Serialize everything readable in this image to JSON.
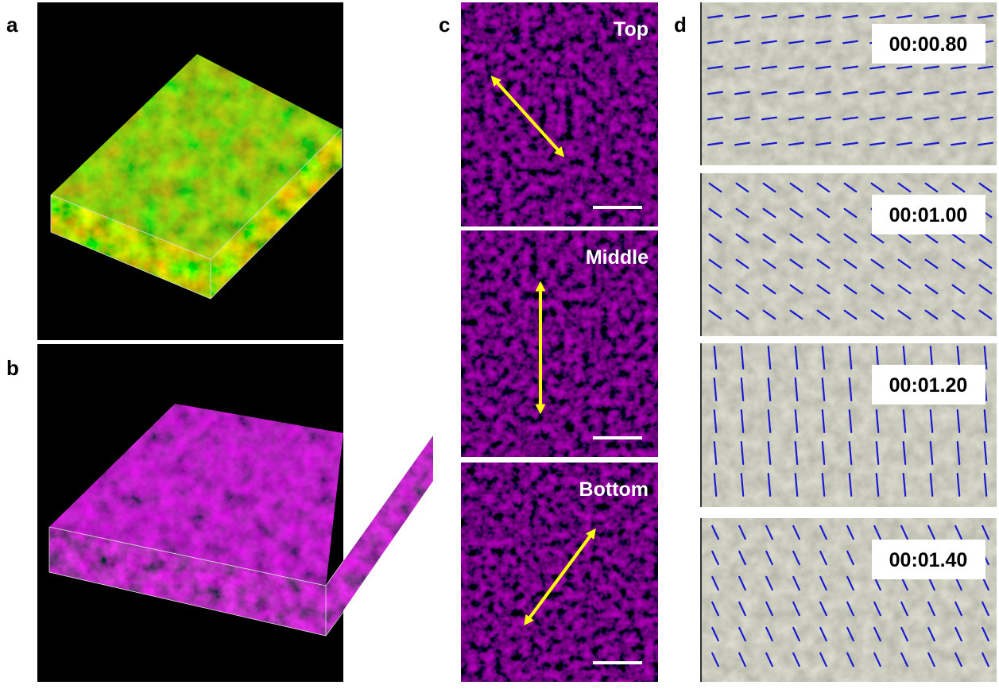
{
  "panels": [
    {
      "label": "a"
    },
    {
      "label": "b"
    },
    {
      "label": "c",
      "images": [
        {
          "label": "Top"
        },
        {
          "label": "Middle"
        },
        {
          "label": "Bottom"
        }
      ]
    },
    {
      "label": "d",
      "images": [
        {
          "label": "00:00.80"
        },
        {
          "label": "00:01.00"
        },
        {
          "label": "00:01.20"
        },
        {
          "label": "00:01.40"
        }
      ]
    }
  ]
}
